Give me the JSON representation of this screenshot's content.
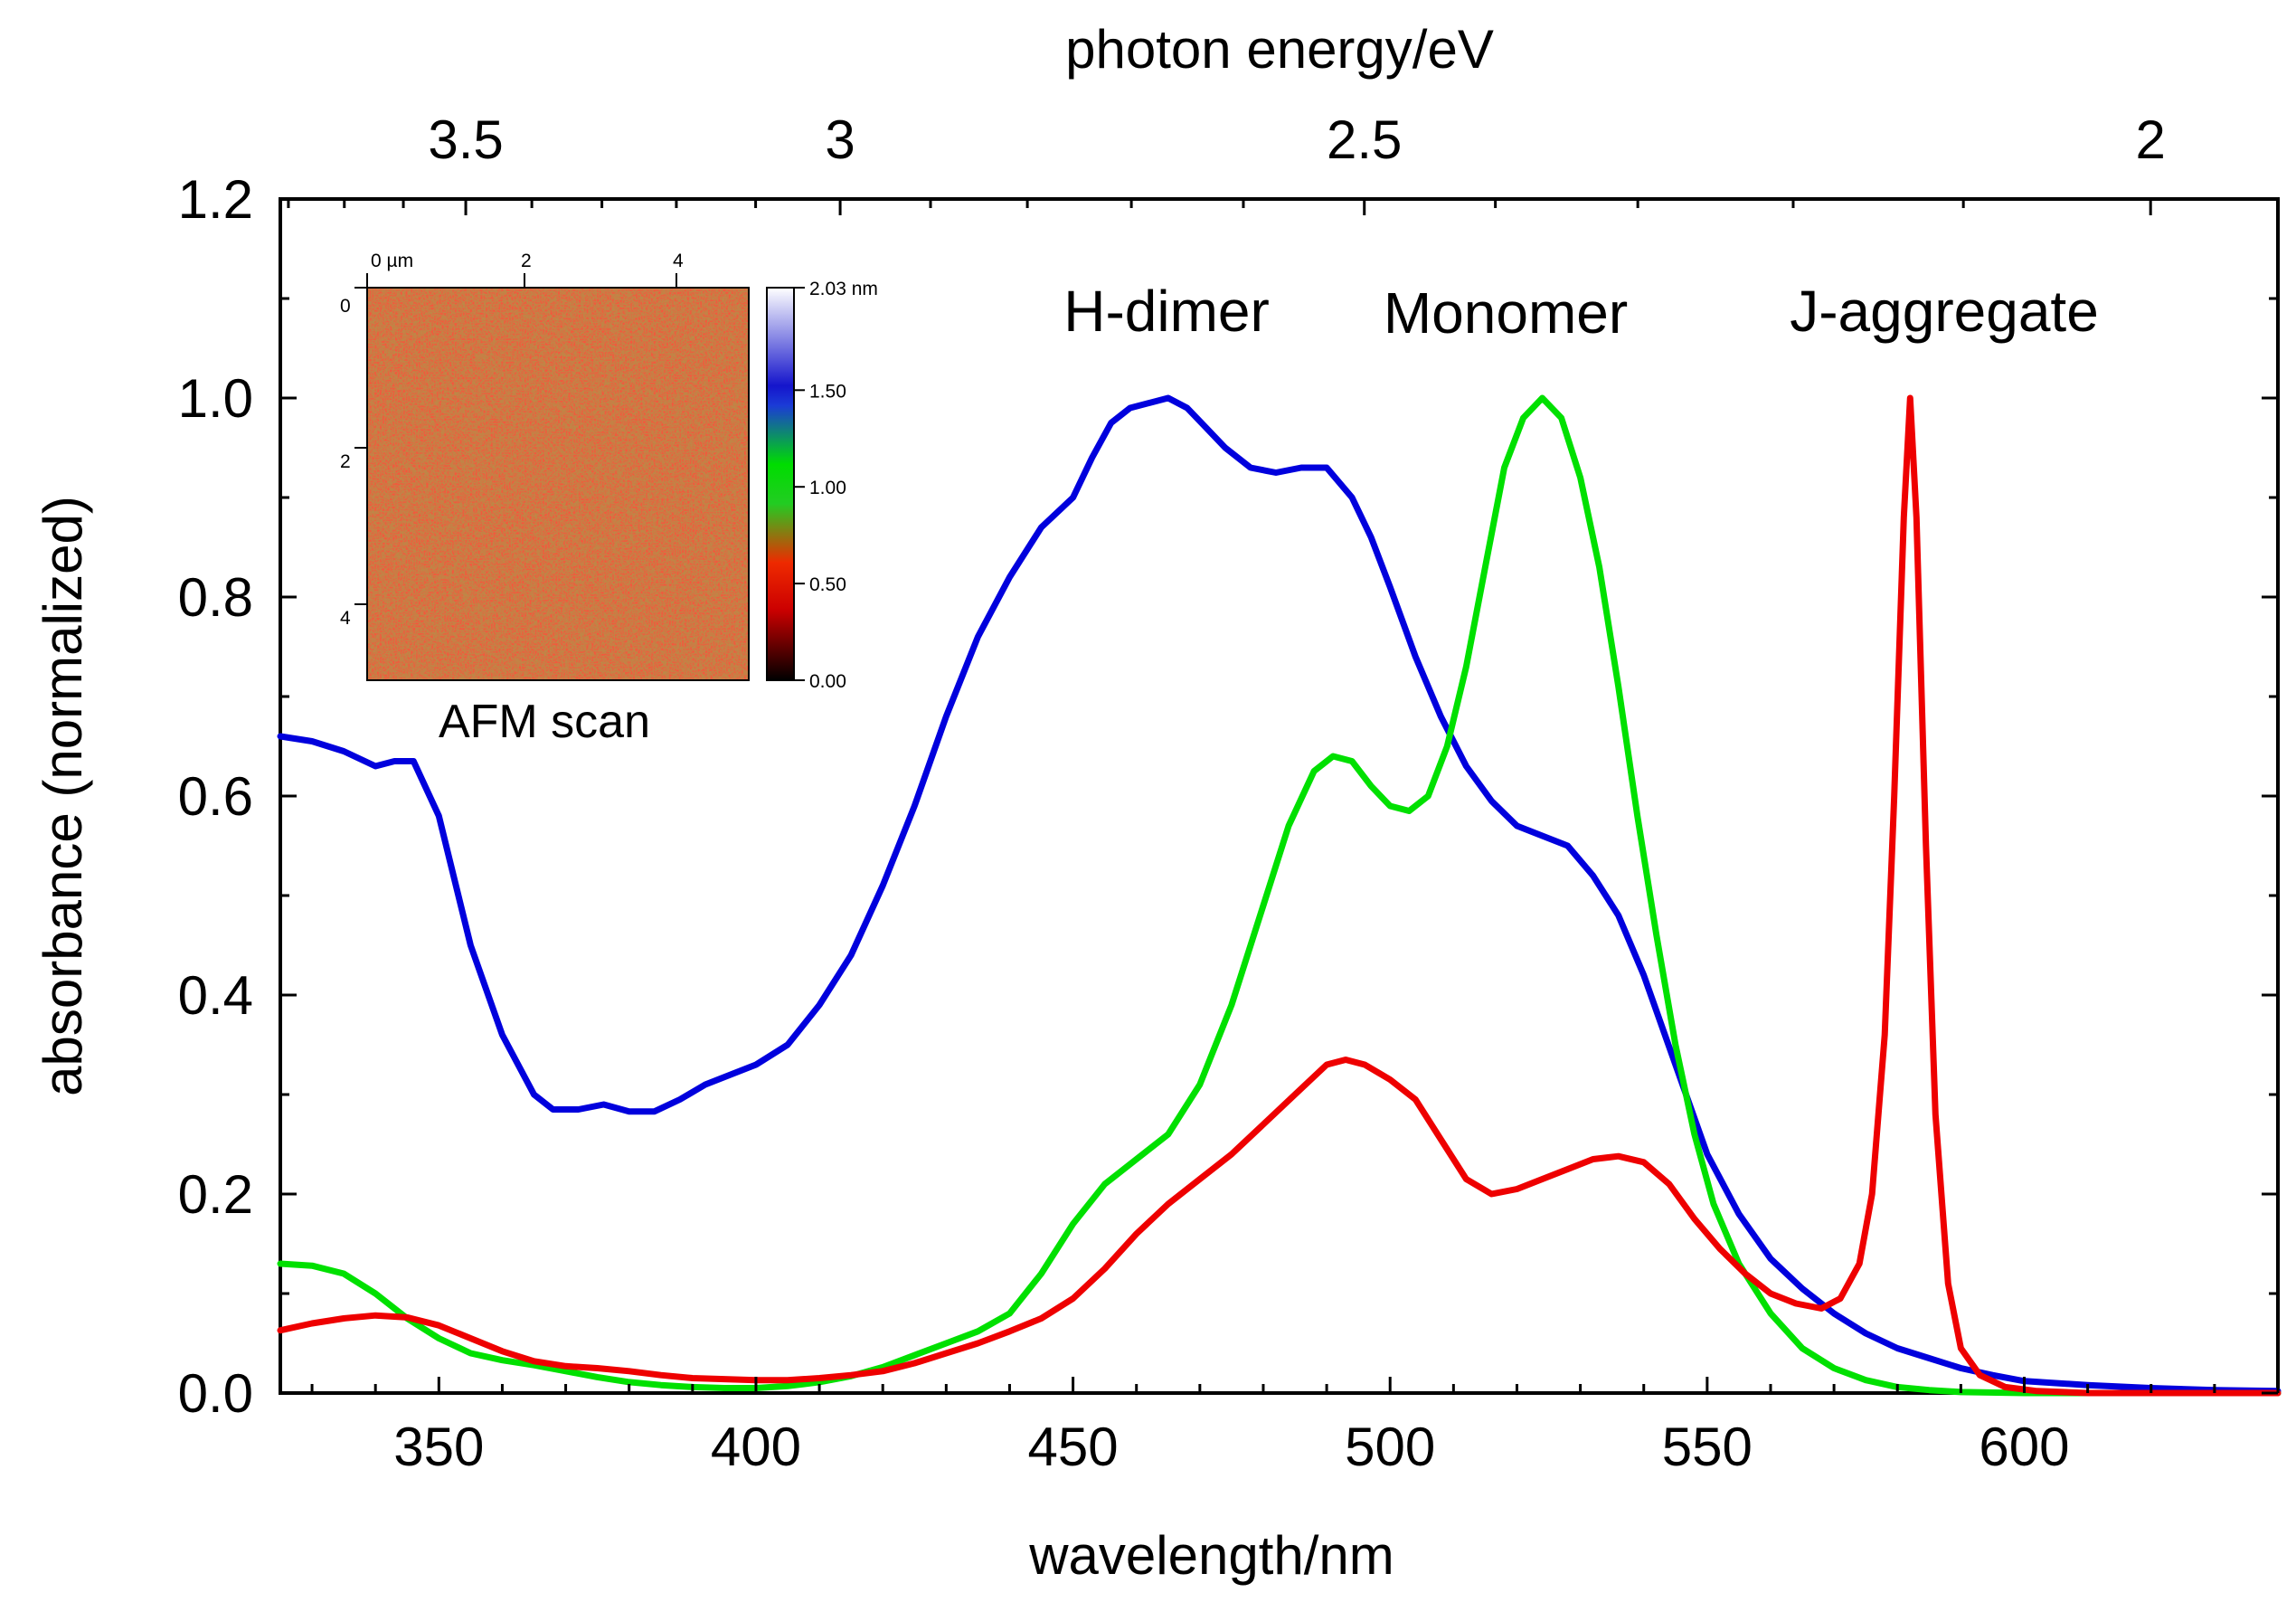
{
  "chart_data": {
    "type": "line",
    "title": "",
    "xlabel": "wavelength/nm",
    "ylabel": "absorbance (normalized)",
    "x2label": "photon energy/eV",
    "xlim": [
      325,
      640
    ],
    "ylim": [
      0,
      1.2
    ],
    "x_ticks": [
      "350",
      "400",
      "450",
      "500",
      "550",
      "600"
    ],
    "y_ticks": [
      "0.0",
      "0.2",
      "0.4",
      "0.6",
      "0.8",
      "1.0",
      "1.2"
    ],
    "x2_ticks": [
      "3.5",
      "3",
      "2.5",
      "2"
    ],
    "annotations": [
      "H-dimer",
      "Monomer",
      "J-aggregate"
    ],
    "series": [
      {
        "name": "H-dimer",
        "color": "#0000dd",
        "x": [
          325,
          330,
          335,
          340,
          343,
          346,
          350,
          355,
          360,
          365,
          368,
          372,
          376,
          380,
          384,
          388,
          392,
          396,
          400,
          405,
          410,
          415,
          420,
          425,
          430,
          435,
          440,
          445,
          450,
          453,
          456,
          459,
          462,
          465,
          468,
          471,
          474,
          478,
          482,
          486,
          490,
          494,
          497,
          500,
          504,
          508,
          512,
          516,
          520,
          524,
          528,
          532,
          536,
          540,
          545,
          550,
          555,
          560,
          565,
          570,
          575,
          580,
          585,
          590,
          595,
          600,
          610,
          620,
          630,
          640
        ],
        "y": [
          0.66,
          0.655,
          0.645,
          0.63,
          0.635,
          0.635,
          0.58,
          0.45,
          0.36,
          0.3,
          0.285,
          0.285,
          0.29,
          0.283,
          0.283,
          0.295,
          0.31,
          0.32,
          0.33,
          0.35,
          0.39,
          0.44,
          0.51,
          0.59,
          0.68,
          0.76,
          0.82,
          0.87,
          0.9,
          0.94,
          0.975,
          0.99,
          0.995,
          1.0,
          0.99,
          0.97,
          0.95,
          0.93,
          0.925,
          0.93,
          0.93,
          0.9,
          0.86,
          0.81,
          0.74,
          0.68,
          0.63,
          0.595,
          0.57,
          0.56,
          0.55,
          0.52,
          0.48,
          0.42,
          0.33,
          0.24,
          0.18,
          0.135,
          0.105,
          0.08,
          0.06,
          0.045,
          0.035,
          0.025,
          0.018,
          0.012,
          0.008,
          0.005,
          0.003,
          0.002
        ]
      },
      {
        "name": "Monomer",
        "color": "#00e000",
        "x": [
          325,
          330,
          335,
          340,
          345,
          350,
          355,
          360,
          365,
          370,
          375,
          380,
          385,
          390,
          395,
          400,
          405,
          410,
          415,
          420,
          425,
          430,
          435,
          440,
          445,
          450,
          455,
          460,
          465,
          470,
          475,
          480,
          484,
          488,
          491,
          494,
          497,
          500,
          503,
          506,
          509,
          512,
          515,
          518,
          521,
          524,
          527,
          530,
          533,
          536,
          539,
          542,
          545,
          548,
          551,
          555,
          560,
          565,
          570,
          575,
          580,
          585,
          590,
          600,
          610,
          640
        ],
        "y": [
          0.13,
          0.128,
          0.12,
          0.1,
          0.075,
          0.055,
          0.04,
          0.033,
          0.028,
          0.022,
          0.016,
          0.011,
          0.008,
          0.006,
          0.005,
          0.005,
          0.007,
          0.011,
          0.017,
          0.026,
          0.038,
          0.05,
          0.062,
          0.08,
          0.12,
          0.17,
          0.21,
          0.235,
          0.26,
          0.31,
          0.39,
          0.49,
          0.57,
          0.625,
          0.64,
          0.635,
          0.61,
          0.59,
          0.585,
          0.6,
          0.65,
          0.73,
          0.83,
          0.93,
          0.98,
          1.0,
          0.98,
          0.92,
          0.83,
          0.71,
          0.58,
          0.46,
          0.35,
          0.26,
          0.19,
          0.13,
          0.08,
          0.045,
          0.025,
          0.013,
          0.006,
          0.003,
          0.001,
          0.0,
          0.0,
          0.0
        ]
      },
      {
        "name": "J-aggregate",
        "color": "#ee0000",
        "x": [
          325,
          330,
          335,
          340,
          345,
          350,
          355,
          360,
          365,
          370,
          375,
          380,
          385,
          390,
          395,
          400,
          405,
          410,
          415,
          420,
          425,
          430,
          435,
          440,
          445,
          450,
          455,
          460,
          465,
          470,
          475,
          480,
          485,
          490,
          493,
          496,
          500,
          504,
          508,
          512,
          516,
          520,
          524,
          528,
          532,
          536,
          540,
          544,
          548,
          552,
          556,
          560,
          564,
          568,
          571,
          574,
          576,
          578,
          579.5,
          581,
          582,
          583,
          584.5,
          586,
          588,
          590,
          593,
          597,
          602,
          610,
          640
        ],
        "y": [
          0.063,
          0.07,
          0.075,
          0.078,
          0.076,
          0.068,
          0.055,
          0.042,
          0.032,
          0.027,
          0.025,
          0.022,
          0.018,
          0.015,
          0.014,
          0.013,
          0.013,
          0.015,
          0.018,
          0.022,
          0.03,
          0.04,
          0.05,
          0.062,
          0.075,
          0.095,
          0.125,
          0.16,
          0.19,
          0.215,
          0.24,
          0.27,
          0.3,
          0.33,
          0.335,
          0.33,
          0.315,
          0.295,
          0.255,
          0.215,
          0.2,
          0.205,
          0.215,
          0.225,
          0.235,
          0.238,
          0.232,
          0.21,
          0.175,
          0.145,
          0.12,
          0.1,
          0.09,
          0.085,
          0.095,
          0.13,
          0.2,
          0.36,
          0.6,
          0.88,
          1.0,
          0.88,
          0.55,
          0.28,
          0.11,
          0.045,
          0.018,
          0.006,
          0.002,
          0.0,
          0.0
        ]
      }
    ],
    "inset": {
      "caption": "AFM scan",
      "x_ticks": [
        "0 µm",
        "2",
        "4"
      ],
      "y_ticks": [
        "0",
        "2",
        "4"
      ],
      "colorbar_ticks": [
        "2.03 nm",
        "1.50",
        "1.00",
        "0.50",
        "0.00"
      ],
      "colorbar_values": [
        2.03,
        1.5,
        1.0,
        0.5,
        0.0
      ]
    }
  }
}
